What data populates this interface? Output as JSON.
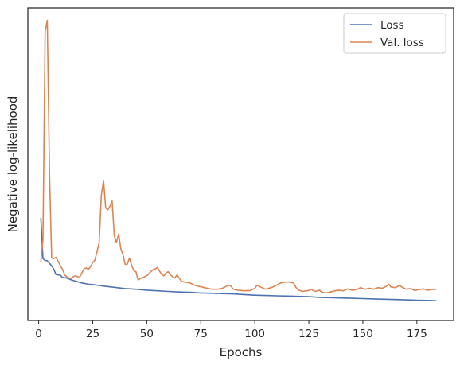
{
  "chart_data": {
    "type": "line",
    "title": "",
    "xlabel": "Epochs",
    "ylabel": "Negative log-likelihood",
    "xlim": [
      -5,
      192
    ],
    "ylim": [
      0,
      1
    ],
    "x_ticks": [
      0,
      25,
      50,
      75,
      100,
      125,
      150,
      175
    ],
    "y_ticks_shown": false,
    "grid": false,
    "legend_position": "top-right",
    "series": [
      {
        "name": "Loss",
        "color": "#4c72b0",
        "points": [
          [
            1,
            0.328
          ],
          [
            2,
            0.198
          ],
          [
            3,
            0.192
          ],
          [
            4,
            0.191
          ],
          [
            5,
            0.183
          ],
          [
            6,
            0.175
          ],
          [
            7,
            0.164
          ],
          [
            8,
            0.147
          ],
          [
            9,
            0.146
          ],
          [
            10,
            0.145
          ],
          [
            11,
            0.138
          ],
          [
            12,
            0.137
          ],
          [
            13,
            0.136
          ],
          [
            14,
            0.133
          ],
          [
            15,
            0.13
          ],
          [
            17,
            0.126
          ],
          [
            20,
            0.12
          ],
          [
            23,
            0.116
          ],
          [
            25,
            0.115
          ],
          [
            30,
            0.11
          ],
          [
            35,
            0.106
          ],
          [
            40,
            0.102
          ],
          [
            45,
            0.1
          ],
          [
            50,
            0.097
          ],
          [
            55,
            0.095
          ],
          [
            60,
            0.093
          ],
          [
            65,
            0.091
          ],
          [
            70,
            0.09
          ],
          [
            75,
            0.088
          ],
          [
            80,
            0.087
          ],
          [
            85,
            0.086
          ],
          [
            90,
            0.085
          ],
          [
            95,
            0.083
          ],
          [
            100,
            0.081
          ],
          [
            105,
            0.08
          ],
          [
            110,
            0.079
          ],
          [
            115,
            0.078
          ],
          [
            120,
            0.077
          ],
          [
            125,
            0.076
          ],
          [
            130,
            0.074
          ],
          [
            135,
            0.073
          ],
          [
            140,
            0.072
          ],
          [
            145,
            0.071
          ],
          [
            150,
            0.07
          ],
          [
            155,
            0.069
          ],
          [
            160,
            0.068
          ],
          [
            165,
            0.067
          ],
          [
            170,
            0.066
          ],
          [
            175,
            0.065
          ],
          [
            180,
            0.064
          ],
          [
            184,
            0.063
          ]
        ]
      },
      {
        "name": "Val. loss",
        "color": "#dd8452",
        "points": [
          [
            1,
            0.188
          ],
          [
            2,
            0.26
          ],
          [
            3,
            0.925
          ],
          [
            4,
            0.96
          ],
          [
            5,
            0.47
          ],
          [
            6,
            0.2
          ],
          [
            7,
            0.198
          ],
          [
            8,
            0.202
          ],
          [
            9,
            0.19
          ],
          [
            10,
            0.176
          ],
          [
            11,
            0.164
          ],
          [
            12,
            0.146
          ],
          [
            13,
            0.14
          ],
          [
            14,
            0.136
          ],
          [
            15,
            0.134
          ],
          [
            16,
            0.14
          ],
          [
            17,
            0.143
          ],
          [
            18,
            0.14
          ],
          [
            19,
            0.14
          ],
          [
            20,
            0.152
          ],
          [
            21,
            0.166
          ],
          [
            22,
            0.168
          ],
          [
            23,
            0.163
          ],
          [
            24,
            0.173
          ],
          [
            25,
            0.185
          ],
          [
            26,
            0.193
          ],
          [
            27,
            0.22
          ],
          [
            28,
            0.25
          ],
          [
            29,
            0.4
          ],
          [
            30,
            0.448
          ],
          [
            31,
            0.36
          ],
          [
            32,
            0.354
          ],
          [
            33,
            0.366
          ],
          [
            34,
            0.382
          ],
          [
            35,
            0.27
          ],
          [
            36,
            0.25
          ],
          [
            37,
            0.276
          ],
          [
            38,
            0.23
          ],
          [
            39,
            0.21
          ],
          [
            40,
            0.18
          ],
          [
            41,
            0.18
          ],
          [
            42,
            0.2
          ],
          [
            43,
            0.176
          ],
          [
            44,
            0.16
          ],
          [
            45,
            0.156
          ],
          [
            46,
            0.13
          ],
          [
            47,
            0.134
          ],
          [
            48,
            0.137
          ],
          [
            49,
            0.14
          ],
          [
            50,
            0.143
          ],
          [
            51,
            0.15
          ],
          [
            52,
            0.157
          ],
          [
            53,
            0.163
          ],
          [
            54,
            0.165
          ],
          [
            55,
            0.17
          ],
          [
            56,
            0.157
          ],
          [
            57,
            0.147
          ],
          [
            58,
            0.143
          ],
          [
            59,
            0.153
          ],
          [
            60,
            0.156
          ],
          [
            61,
            0.146
          ],
          [
            62,
            0.14
          ],
          [
            63,
            0.136
          ],
          [
            64,
            0.146
          ],
          [
            65,
            0.136
          ],
          [
            66,
            0.126
          ],
          [
            67,
            0.124
          ],
          [
            70,
            0.12
          ],
          [
            72,
            0.113
          ],
          [
            75,
            0.108
          ],
          [
            78,
            0.103
          ],
          [
            80,
            0.1
          ],
          [
            83,
            0.1
          ],
          [
            85,
            0.103
          ],
          [
            87,
            0.11
          ],
          [
            88,
            0.113
          ],
          [
            89,
            0.11
          ],
          [
            90,
            0.1
          ],
          [
            92,
            0.097
          ],
          [
            95,
            0.095
          ],
          [
            98,
            0.096
          ],
          [
            100,
            0.103
          ],
          [
            101,
            0.113
          ],
          [
            103,
            0.106
          ],
          [
            105,
            0.1
          ],
          [
            108,
            0.106
          ],
          [
            110,
            0.113
          ],
          [
            112,
            0.12
          ],
          [
            114,
            0.123
          ],
          [
            116,
            0.123
          ],
          [
            118,
            0.12
          ],
          [
            119,
            0.106
          ],
          [
            120,
            0.098
          ],
          [
            122,
            0.093
          ],
          [
            125,
            0.096
          ],
          [
            126,
            0.1
          ],
          [
            127,
            0.096
          ],
          [
            128,
            0.093
          ],
          [
            130,
            0.097
          ],
          [
            131,
            0.09
          ],
          [
            133,
            0.088
          ],
          [
            135,
            0.091
          ],
          [
            137,
            0.095
          ],
          [
            139,
            0.097
          ],
          [
            141,
            0.095
          ],
          [
            143,
            0.101
          ],
          [
            145,
            0.097
          ],
          [
            147,
            0.099
          ],
          [
            149,
            0.105
          ],
          [
            151,
            0.1
          ],
          [
            153,
            0.103
          ],
          [
            155,
            0.1
          ],
          [
            157,
            0.105
          ],
          [
            159,
            0.103
          ],
          [
            161,
            0.11
          ],
          [
            162,
            0.116
          ],
          [
            163,
            0.107
          ],
          [
            165,
            0.105
          ],
          [
            167,
            0.112
          ],
          [
            168,
            0.107
          ],
          [
            170,
            0.1
          ],
          [
            172,
            0.102
          ],
          [
            174,
            0.096
          ],
          [
            176,
            0.099
          ],
          [
            178,
            0.101
          ],
          [
            180,
            0.097
          ],
          [
            182,
            0.099
          ],
          [
            184,
            0.1
          ]
        ]
      }
    ]
  }
}
